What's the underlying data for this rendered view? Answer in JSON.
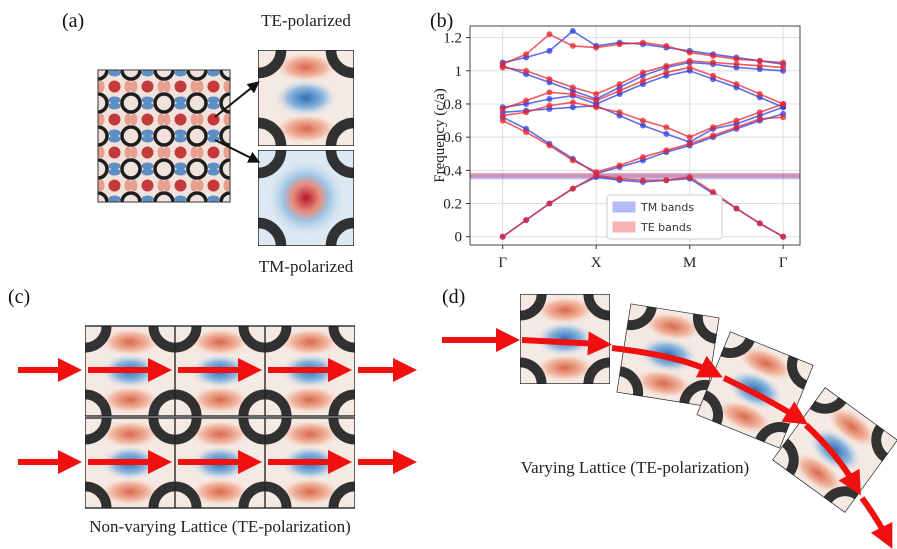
{
  "panels": {
    "a": {
      "label": "(a)",
      "top_caption": "TE-polarized",
      "bottom_caption": "TM-polarized"
    },
    "b": {
      "label": "(b)"
    },
    "c": {
      "label": "(c)",
      "caption": "Non-varying Lattice (TE-polarization)"
    },
    "d": {
      "label": "(d)",
      "caption": "Varying Lattice (TE-polarization)"
    }
  },
  "chart_data": {
    "type": "band",
    "ylabel": "Frequency (c/a)",
    "x": [
      0,
      0.25,
      0.5,
      0.75,
      1,
      1.25,
      1.5,
      1.75,
      2,
      2.25,
      2.5,
      2.75,
      3
    ],
    "xlim": [
      -0.35,
      3.18
    ],
    "xticks": [
      {
        "value": 0,
        "label": "Γ"
      },
      {
        "value": 1,
        "label": "X"
      },
      {
        "value": 2,
        "label": "M"
      },
      {
        "value": 3,
        "label": "Γ"
      }
    ],
    "ylim": [
      -0.05,
      1.27
    ],
    "yticks": [
      0,
      0.2,
      0.4,
      0.6,
      0.8,
      1.0,
      1.2
    ],
    "grid": true,
    "legend": "lower center",
    "series": [
      {
        "name": "TM bands",
        "color": "#2b3fe0",
        "gap": [
          0.345,
          0.38
        ],
        "bands": [
          [
            0,
            0.1,
            0.2,
            0.29,
            0.36,
            0.34,
            0.33,
            0.34,
            0.35,
            0.26,
            0.17,
            0.08,
            0
          ],
          [
            0.72,
            0.65,
            0.56,
            0.47,
            0.38,
            0.42,
            0.46,
            0.51,
            0.55,
            0.6,
            0.65,
            0.7,
            0.74
          ],
          [
            0.75,
            0.76,
            0.77,
            0.78,
            0.79,
            0.73,
            0.67,
            0.62,
            0.57,
            0.65,
            0.68,
            0.73,
            0.78
          ],
          [
            0.78,
            0.8,
            0.83,
            0.85,
            0.8,
            0.86,
            0.92,
            0.97,
            1.0,
            0.95,
            0.9,
            0.84,
            0.78
          ],
          [
            1.03,
            0.98,
            0.93,
            0.88,
            0.83,
            0.9,
            0.97,
            1.02,
            1.05,
            1.04,
            1.02,
            1.01,
            1.0
          ],
          [
            1.05,
            1.08,
            1.12,
            1.24,
            1.15,
            1.17,
            1.16,
            1.14,
            1.12,
            1.1,
            1.08,
            1.06,
            1.04
          ]
        ]
      },
      {
        "name": "TE bands",
        "color": "#e8262f",
        "gap": [
          0.355,
          0.385
        ],
        "bands": [
          [
            0,
            0.1,
            0.2,
            0.29,
            0.37,
            0.35,
            0.34,
            0.34,
            0.36,
            0.27,
            0.17,
            0.08,
            0
          ],
          [
            0.7,
            0.63,
            0.55,
            0.46,
            0.39,
            0.43,
            0.48,
            0.52,
            0.56,
            0.61,
            0.66,
            0.71,
            0.72
          ],
          [
            0.73,
            0.75,
            0.79,
            0.81,
            0.78,
            0.75,
            0.7,
            0.66,
            0.6,
            0.66,
            0.7,
            0.75,
            0.8
          ],
          [
            0.77,
            0.82,
            0.87,
            0.86,
            0.82,
            0.88,
            0.94,
            0.99,
            1.02,
            0.97,
            0.92,
            0.86,
            0.8
          ],
          [
            1.02,
            1.0,
            0.95,
            0.9,
            0.86,
            0.92,
            0.99,
            1.03,
            1.06,
            1.05,
            1.04,
            1.03,
            1.02
          ],
          [
            1.04,
            1.1,
            1.22,
            1.15,
            1.14,
            1.16,
            1.17,
            1.15,
            1.11,
            1.09,
            1.07,
            1.06,
            1.05
          ]
        ]
      }
    ]
  }
}
